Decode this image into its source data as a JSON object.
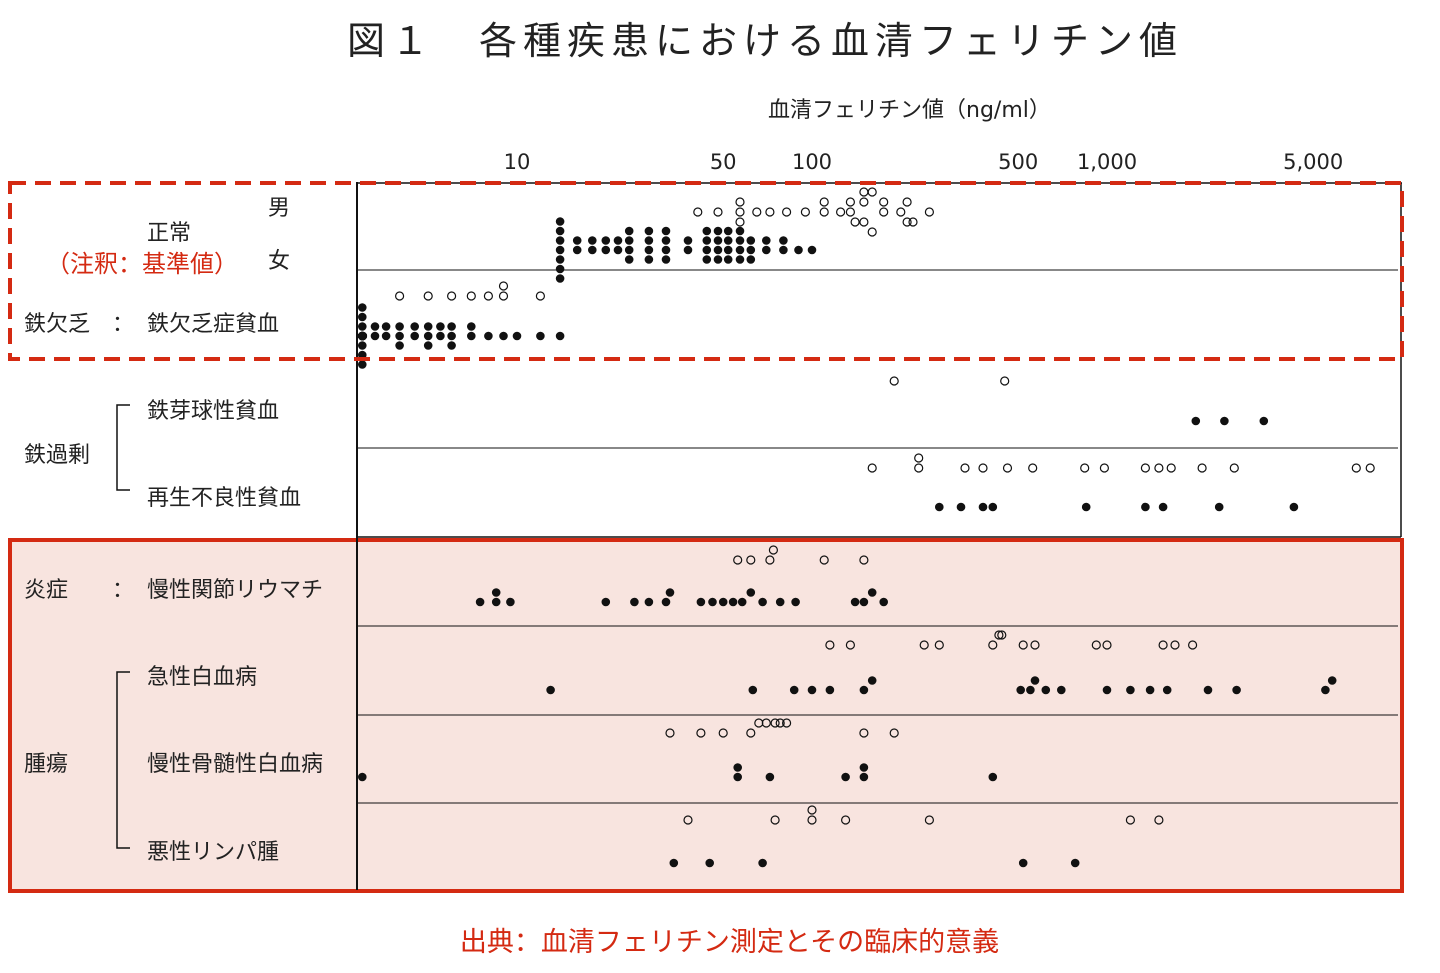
{
  "title": "図１　各種疾患における血清フェリチン値",
  "axis_title": "血清フェリチン値（ng/ml）",
  "source": "出典：血清フェリチン測定とその臨床的意義",
  "labels": {
    "male": "男",
    "female": "女",
    "normal": "正常",
    "note": "（注釈：基準値）",
    "iron_def_group": "鉄欠乏　：",
    "iron_def_anemia": "鉄欠乏症貧血",
    "iron_over_group": "鉄過剰",
    "sideroblastic": "鉄芽球性貧血",
    "aplastic": "再生不良性貧血",
    "inflammation_group": "炎症　　：",
    "ra": "慢性関節リウマチ",
    "tumor_group": "腫瘍",
    "aml": "急性白血病",
    "cml": "慢性骨髄性白血病",
    "lymphoma": "悪性リンパ腫"
  },
  "colors": {
    "highlight": "#d42a12",
    "pink_fill": "#f8e4df",
    "dot": "#111111"
  },
  "chart_data": {
    "type": "scatter",
    "x_scale": "log",
    "x_unit": "ng/ml",
    "xlim": [
      1.5,
      8000
    ],
    "x_ticks": [
      {
        "value": 10,
        "label": "10"
      },
      {
        "value": 50,
        "label": "50"
      },
      {
        "value": 100,
        "label": "100"
      },
      {
        "value": 500,
        "label": "500"
      },
      {
        "value": 1000,
        "label": "1,000"
      },
      {
        "value": 5000,
        "label": "5,000"
      }
    ],
    "rows": [
      {
        "category": "正常 男",
        "fill": "open",
        "values": [
          41,
          48,
          57,
          57,
          57,
          65,
          72,
          82,
          95,
          110,
          110,
          125,
          135,
          135,
          140,
          150,
          150,
          150,
          160,
          160,
          175,
          175,
          200,
          210,
          210,
          220,
          250
        ]
      },
      {
        "category": "正常 女",
        "fill": "filled",
        "values": [
          14,
          14,
          14,
          14,
          14,
          14,
          14,
          16,
          16,
          18,
          18,
          20,
          20,
          22,
          22,
          24,
          24,
          24,
          24,
          28,
          28,
          28,
          28,
          32,
          32,
          32,
          32,
          38,
          38,
          44,
          44,
          44,
          44,
          48,
          48,
          48,
          48,
          52,
          52,
          52,
          52,
          57,
          57,
          57,
          57,
          62,
          62,
          62,
          70,
          70,
          80,
          80,
          90,
          100
        ]
      },
      {
        "category": "鉄欠乏症貧血",
        "fill": "open",
        "values": [
          4,
          5,
          6,
          7,
          8,
          9,
          9,
          12
        ]
      },
      {
        "category": "鉄欠乏症貧血",
        "fill": "filled",
        "values": [
          1.5,
          1.5,
          1.5,
          1.6,
          1.6,
          1.7,
          1.7,
          1.7,
          1.8,
          1.8,
          1.9,
          1.9,
          1.9,
          1.9,
          2,
          2,
          2,
          2,
          2.1,
          2.1,
          2.2,
          2.2,
          2.3,
          2.3,
          2.3,
          2.4,
          2.4,
          2.4,
          2.6,
          2.6,
          2.8,
          2.8,
          3,
          3,
          3,
          3.3,
          3.3,
          3.6,
          3.6,
          4,
          4,
          4,
          4.5,
          4.5,
          5,
          5,
          5,
          5.5,
          5.5,
          6,
          6,
          6,
          7,
          7,
          8,
          9,
          10,
          12,
          14
        ]
      },
      {
        "category": "鉄芽球性貧血",
        "fill": "open",
        "values": [
          190,
          450
        ]
      },
      {
        "category": "鉄芽球性貧血",
        "fill": "filled",
        "values": [
          2000,
          2500,
          3400
        ]
      },
      {
        "category": "再生不良性貧血",
        "fill": "open",
        "values": [
          160,
          230,
          230,
          330,
          380,
          460,
          560,
          840,
          980,
          1350,
          1500,
          1650,
          2100,
          2700,
          7000,
          7800
        ]
      },
      {
        "category": "再生不良性貧血",
        "fill": "filled",
        "values": [
          270,
          320,
          380,
          410,
          850,
          1350,
          1550,
          2400,
          4300
        ]
      },
      {
        "category": "慢性関節リウマチ",
        "fill": "open",
        "values": [
          56,
          62,
          72,
          74,
          110,
          150
        ]
      },
      {
        "category": "慢性関節リウマチ",
        "fill": "filled",
        "values": [
          7.5,
          8.5,
          8.5,
          9.5,
          20,
          25,
          28,
          32,
          33,
          42,
          46,
          50,
          54,
          58,
          62,
          68,
          78,
          88,
          140,
          150,
          160,
          175
        ]
      },
      {
        "category": "急性白血病",
        "fill": "open",
        "values": [
          115,
          135,
          240,
          270,
          410,
          430,
          440,
          520,
          570,
          920,
          1000,
          1550,
          1700,
          1950
        ]
      },
      {
        "category": "急性白血病",
        "fill": "filled",
        "values": [
          13,
          63,
          87,
          100,
          115,
          150,
          160,
          510,
          550,
          570,
          620,
          700,
          1000,
          1200,
          1400,
          1600,
          2200,
          2750,
          5500,
          5800
        ]
      },
      {
        "category": "慢性骨髄性白血病",
        "fill": "open",
        "values": [
          33,
          42,
          50,
          62,
          66,
          70,
          75,
          78,
          82,
          150,
          190
        ]
      },
      {
        "category": "慢性骨髄性白血病",
        "fill": "filled",
        "values": [
          2.2,
          56,
          56,
          72,
          130,
          150,
          150,
          410
        ]
      },
      {
        "category": "悪性リンパ腫",
        "fill": "open",
        "values": [
          38,
          75,
          100,
          100,
          130,
          250,
          1200,
          1500
        ]
      },
      {
        "category": "悪性リンパ腫",
        "fill": "filled",
        "values": [
          34,
          45,
          68,
          520,
          780
        ]
      }
    ]
  }
}
